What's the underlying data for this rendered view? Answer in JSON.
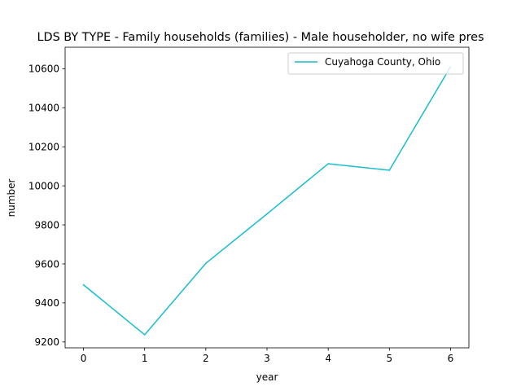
{
  "chart_data": {
    "type": "line",
    "title": "LDS BY TYPE - Family households (families) - Male householder, no wife pres",
    "xlabel": "year",
    "ylabel": "number",
    "x": [
      0,
      1,
      2,
      3,
      4,
      5,
      6
    ],
    "x_ticks": [
      "0",
      "1",
      "2",
      "3",
      "4",
      "5",
      "6"
    ],
    "y_ticks": [
      "9200",
      "9400",
      "9600",
      "9800",
      "10000",
      "10200",
      "10400",
      "10600"
    ],
    "xlim": [
      -0.3,
      6.3
    ],
    "ylim": [
      9170,
      10710
    ],
    "series": [
      {
        "name": "Cuyahoga County, Ohio",
        "color": "#17becf",
        "values": [
          9493,
          9237,
          9603,
          9856,
          10113,
          10080,
          10610
        ]
      }
    ],
    "legend_position": "upper-right",
    "grid": false
  }
}
